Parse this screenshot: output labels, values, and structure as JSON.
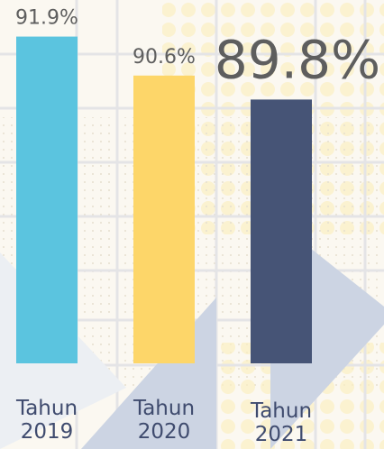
{
  "chart_data": {
    "type": "bar",
    "categories": [
      "Tahun 2019",
      "Tahun 2020",
      "Tahun 2021"
    ],
    "values": [
      91.9,
      90.6,
      89.8
    ],
    "value_labels": [
      "91.9%",
      "90.6%",
      "89.8%"
    ],
    "colors": [
      "#5bc4df",
      "#fdd669",
      "#465476"
    ],
    "ylim": [
      81,
      93
    ]
  }
}
